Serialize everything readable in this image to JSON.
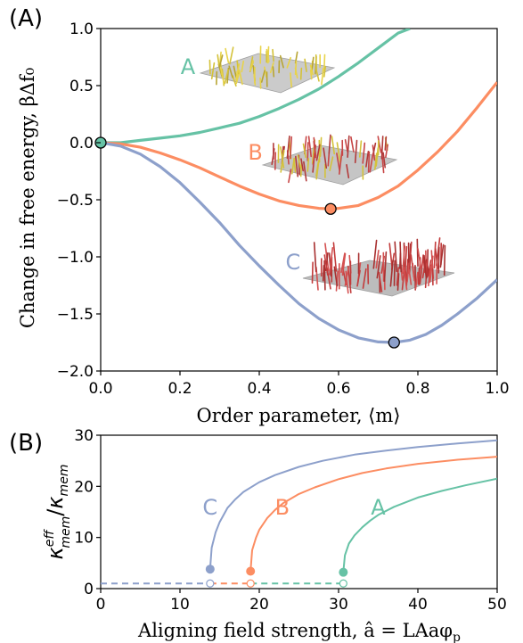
{
  "colors": {
    "A": "#66c2a5",
    "B": "#fc8d62",
    "C": "#8da0cb",
    "axis": "#000000"
  },
  "chart_data": [
    {
      "type": "line",
      "panel_label": "(A)",
      "xlabel": "Order parameter, ⟨m⟩",
      "ylabel": "Change in free energy, βΔf₀",
      "xlim": [
        0.0,
        1.0
      ],
      "ylim": [
        -2.0,
        1.0
      ],
      "xticks": [
        0.0,
        0.2,
        0.4,
        0.6,
        0.8,
        1.0
      ],
      "xtick_labels": [
        "0.0",
        "0.2",
        "0.4",
        "0.6",
        "0.8",
        "1.0"
      ],
      "yticks": [
        1.0,
        0.5,
        0.0,
        -0.5,
        -1.0,
        -1.5,
        -2.0
      ],
      "ytick_labels": [
        "1.0",
        "0.5",
        "0.0",
        "−0.5",
        "−1.0",
        "−1.5",
        "−2.0"
      ],
      "series": [
        {
          "name": "A",
          "color": "#66c2a5",
          "x": [
            0,
            0.05,
            0.1,
            0.15,
            0.2,
            0.25,
            0.3,
            0.35,
            0.4,
            0.45,
            0.5,
            0.55,
            0.6,
            0.65,
            0.7,
            0.75,
            0.78
          ],
          "y": [
            0,
            0.0,
            0.02,
            0.04,
            0.06,
            0.09,
            0.13,
            0.17,
            0.23,
            0.3,
            0.38,
            0.47,
            0.58,
            0.7,
            0.83,
            0.96,
            1.0
          ]
        },
        {
          "name": "B",
          "color": "#fc8d62",
          "x": [
            0,
            0.05,
            0.1,
            0.15,
            0.2,
            0.25,
            0.3,
            0.35,
            0.4,
            0.45,
            0.5,
            0.55,
            0.58,
            0.6,
            0.65,
            0.7,
            0.75,
            0.8,
            0.85,
            0.9,
            0.95,
            1.0
          ],
          "y": [
            0,
            -0.01,
            -0.04,
            -0.09,
            -0.15,
            -0.22,
            -0.3,
            -0.38,
            -0.45,
            -0.51,
            -0.55,
            -0.575,
            -0.58,
            -0.575,
            -0.55,
            -0.48,
            -0.38,
            -0.24,
            -0.08,
            0.1,
            0.31,
            0.53
          ]
        },
        {
          "name": "C",
          "color": "#8da0cb",
          "x": [
            0,
            0.05,
            0.1,
            0.15,
            0.2,
            0.25,
            0.3,
            0.35,
            0.4,
            0.45,
            0.5,
            0.55,
            0.6,
            0.65,
            0.7,
            0.74,
            0.78,
            0.82,
            0.86,
            0.9,
            0.95,
            1.0
          ],
          "y": [
            0,
            -0.03,
            -0.1,
            -0.21,
            -0.35,
            -0.52,
            -0.7,
            -0.9,
            -1.08,
            -1.25,
            -1.41,
            -1.54,
            -1.64,
            -1.71,
            -1.745,
            -1.75,
            -1.73,
            -1.68,
            -1.6,
            -1.5,
            -1.36,
            -1.2
          ]
        }
      ],
      "markers": [
        {
          "series": "origin",
          "x": 0.0,
          "y": 0.0,
          "color": "#66c2a5"
        },
        {
          "series": "B",
          "x": 0.58,
          "y": -0.58,
          "color": "#fc8d62"
        },
        {
          "series": "C",
          "x": 0.74,
          "y": -1.75,
          "color": "#8da0cb"
        }
      ],
      "annotations": [
        {
          "text": "A",
          "x": 0.22,
          "y": 0.6,
          "color": "#66c2a5"
        },
        {
          "text": "B",
          "x": 0.39,
          "y": -0.15,
          "color": "#fc8d62"
        },
        {
          "text": "C",
          "x": 0.485,
          "y": -1.11,
          "color": "#8da0cb"
        }
      ]
    },
    {
      "type": "line",
      "panel_label": "(B)",
      "xlabel": "Aligning field strength, â = LAaφ",
      "xlabel_sub": "p",
      "ylabel": "κ/κ",
      "ylabel_parts": {
        "base1": "κ",
        "sup1": "eff",
        "sub1": "mem",
        "slash": "/",
        "base2": "κ",
        "sub2": "mem"
      },
      "xlim": [
        0,
        50
      ],
      "ylim": [
        0,
        30
      ],
      "xticks": [
        0,
        10,
        20,
        30,
        40,
        50
      ],
      "xtick_labels": [
        "0",
        "10",
        "20",
        "30",
        "40",
        "50"
      ],
      "yticks": [
        0,
        10,
        20,
        30
      ],
      "ytick_labels": [
        "0",
        "10",
        "20",
        "30"
      ],
      "series": [
        {
          "name": "C",
          "color": "#8da0cb",
          "onset": 13.8,
          "x": [
            13.8,
            14.0,
            14.5,
            15,
            16,
            17,
            18,
            20,
            22,
            25,
            28,
            32,
            36,
            40,
            45,
            50
          ],
          "y": [
            3.8,
            8.0,
            11.0,
            13.0,
            15.8,
            17.5,
            18.9,
            20.8,
            22.2,
            23.8,
            25.0,
            26.2,
            27.0,
            27.7,
            28.4,
            29.0
          ]
        },
        {
          "name": "B",
          "color": "#fc8d62",
          "onset": 18.9,
          "x": [
            18.9,
            19.1,
            19.6,
            20,
            21,
            22,
            23,
            25,
            27,
            30,
            33,
            36,
            40,
            45,
            50
          ],
          "y": [
            3.4,
            7.5,
            10.0,
            11.5,
            13.8,
            15.4,
            16.7,
            18.5,
            19.8,
            21.4,
            22.6,
            23.5,
            24.4,
            25.2,
            25.8
          ]
        },
        {
          "name": "A",
          "color": "#66c2a5",
          "onset": 30.6,
          "x": [
            30.6,
            30.8,
            31.3,
            32,
            33,
            34,
            35,
            37,
            40,
            43,
            46,
            50
          ],
          "y": [
            3.2,
            6.5,
            8.8,
            10.4,
            12.0,
            13.3,
            14.4,
            16.0,
            17.8,
            19.1,
            20.2,
            21.5
          ]
        }
      ],
      "baseline": {
        "y": 1.0,
        "segments": [
          {
            "from": 0,
            "to": 13.8,
            "color": "#8da0cb"
          },
          {
            "from": 13.8,
            "to": 18.9,
            "color": "#fc8d62"
          },
          {
            "from": 18.9,
            "to": 30.6,
            "color": "#66c2a5"
          }
        ]
      },
      "annotations": [
        {
          "text": "C",
          "x": 13.8,
          "y": 14.5,
          "color": "#8da0cb"
        },
        {
          "text": "B",
          "x": 22.9,
          "y": 14.5,
          "color": "#fc8d62"
        },
        {
          "text": "A",
          "x": 35.0,
          "y": 14.5,
          "color": "#66c2a5"
        }
      ]
    }
  ]
}
